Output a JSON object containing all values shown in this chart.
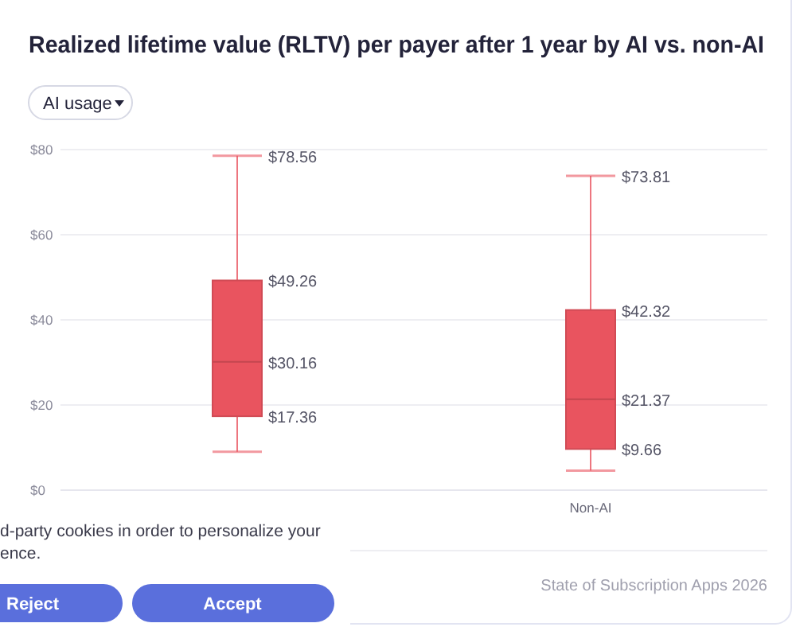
{
  "chart_data": {
    "type": "box",
    "title": "Realized lifetime value (RLTV) per payer after 1 year by AI vs. non-AI",
    "categories": [
      null,
      "Non-AI"
    ],
    "series": [
      {
        "color": "#e9545f",
        "boxes": [
          {
            "low": 9,
            "q1": 17.36,
            "median": 30.16,
            "q3": 49.26,
            "high": 78.56
          },
          {
            "low": 4.6,
            "q1": 9.66,
            "median": 21.37,
            "q3": 42.32,
            "high": 73.81
          }
        ],
        "value_labels": [
          {
            "high": "$78.56",
            "q3": "$49.26",
            "median": "$30.16",
            "q1": "$17.36"
          },
          {
            "high": "$73.81",
            "q3": "$42.32",
            "median": "$21.37",
            "q1": "$9.66"
          }
        ]
      }
    ],
    "ylim": [
      0,
      80
    ],
    "yticks": [
      {
        "value": 0,
        "label": "$0"
      },
      {
        "value": 20,
        "label": "$20"
      },
      {
        "value": 40,
        "label": "$40"
      },
      {
        "value": 60,
        "label": "$60"
      },
      {
        "value": 80,
        "label": "$80"
      }
    ],
    "grid": "y",
    "annotations": [
      "AI usage",
      "State of Subscription Apps 2026",
      "d-party cookies in order to personalize your",
      "ence.",
      "Reject",
      "Accept"
    ]
  }
}
